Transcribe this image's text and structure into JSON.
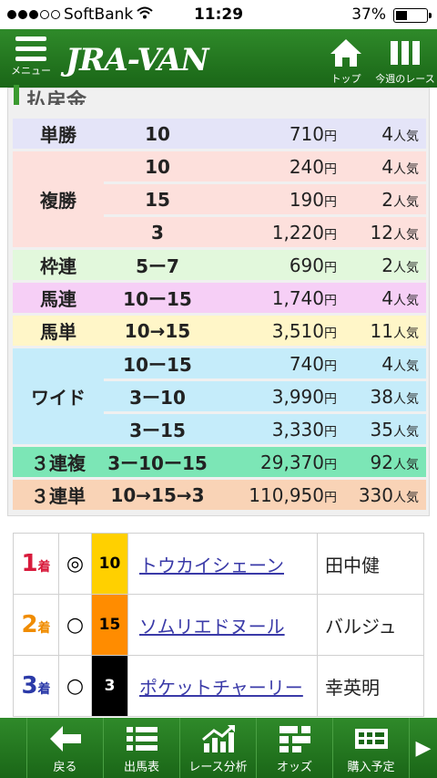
{
  "status_bar": {
    "carrier": "SoftBank",
    "time": "11:29",
    "battery": "37%"
  },
  "header": {
    "menu_label": "メニュー",
    "logo": "JRA-VAN",
    "top_label": "トップ",
    "week_label": "今週のレース"
  },
  "payout": {
    "title": "払戻金",
    "yen": "円",
    "ninki": "人気",
    "bets": [
      {
        "type": "単勝",
        "rows": [
          {
            "nums": "10",
            "amount": "710",
            "pop": "4"
          }
        ]
      },
      {
        "type": "複勝",
        "rows": [
          {
            "nums": "10",
            "amount": "240",
            "pop": "4"
          },
          {
            "nums": "15",
            "amount": "190",
            "pop": "2"
          },
          {
            "nums": "3",
            "amount": "1,220",
            "pop": "12"
          }
        ]
      },
      {
        "type": "枠連",
        "rows": [
          {
            "nums": "5ー7",
            "amount": "690",
            "pop": "2"
          }
        ]
      },
      {
        "type": "馬連",
        "rows": [
          {
            "nums": "10ー15",
            "amount": "1,740",
            "pop": "4"
          }
        ]
      },
      {
        "type": "馬単",
        "rows": [
          {
            "nums": "10→15",
            "amount": "3,510",
            "pop": "11"
          }
        ]
      },
      {
        "type": "ワイド",
        "rows": [
          {
            "nums": "10ー15",
            "amount": "740",
            "pop": "4"
          },
          {
            "nums": "3ー10",
            "amount": "3,990",
            "pop": "38"
          },
          {
            "nums": "3ー15",
            "amount": "3,330",
            "pop": "35"
          }
        ]
      },
      {
        "type": "３連複",
        "rows": [
          {
            "nums": "3ー10ー15",
            "amount": "29,370",
            "pop": "92"
          }
        ]
      },
      {
        "type": "３連単",
        "rows": [
          {
            "nums": "10→15→3",
            "amount": "110,950",
            "pop": "330"
          }
        ]
      }
    ]
  },
  "results": {
    "chaku": "着",
    "rows": [
      {
        "place": "1",
        "mark": "◎",
        "horse_no": "10",
        "horse_color": "#ffd000",
        "num_color": "#000000",
        "name": "トウカイシェーン",
        "jockey": "田中健"
      },
      {
        "place": "2",
        "mark": "○",
        "horse_no": "15",
        "horse_color": "#ff8c00",
        "num_color": "#000000",
        "name": "ソムリエドヌール",
        "jockey": "バルジュ"
      },
      {
        "place": "3",
        "mark": "○",
        "horse_no": "3",
        "horse_color": "#000000",
        "num_color": "#ffffff",
        "name": "ポケットチャーリー",
        "jockey": "幸英明"
      }
    ]
  },
  "footer": {
    "back": "戻る",
    "entries": "出馬表",
    "analysis": "レース分析",
    "odds": "オッズ",
    "purchase": "購入予定"
  },
  "colors": {
    "header_green": "#2a8326",
    "win_bg": "#e4e4f8",
    "place_bg": "#fde0dc",
    "bracket_bg": "#e2f8dc",
    "quinella_bg": "#f6cff6",
    "exacta_bg": "#fff6c8",
    "wide_bg": "#c5ecfa",
    "trio_bg": "#7ce6b6",
    "trifecta_bg": "#f9d3b6"
  }
}
